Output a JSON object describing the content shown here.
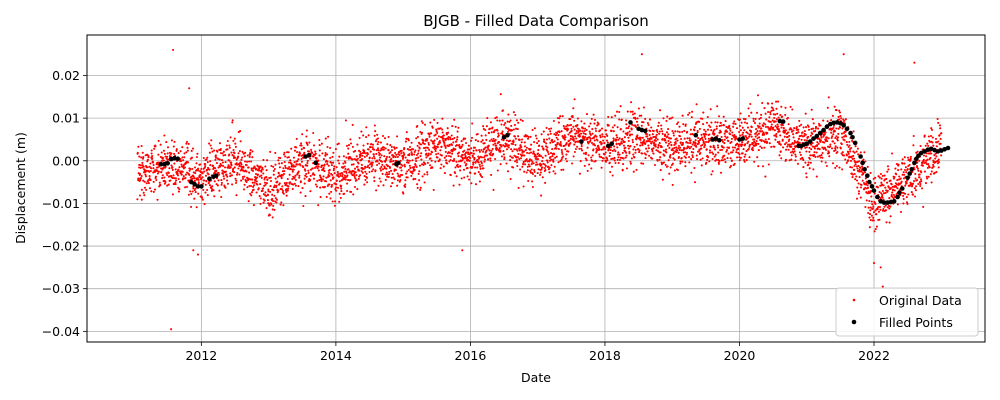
{
  "chart_data": {
    "type": "scatter",
    "title": "BJGB - Filled Data Comparison",
    "xlabel": "Date",
    "ylabel": "Displacement (m)",
    "xlim": [
      2010.3,
      2023.65
    ],
    "ylim": [
      -0.0425,
      0.0295
    ],
    "grid": true,
    "x_ticks": [
      2012,
      2014,
      2016,
      2018,
      2020,
      2022
    ],
    "x_tick_labels": [
      "2012",
      "2014",
      "2016",
      "2018",
      "2020",
      "2022"
    ],
    "y_ticks": [
      0.02,
      0.01,
      0.0,
      -0.01,
      -0.02,
      -0.03,
      -0.04
    ],
    "y_tick_labels": [
      "0.02",
      "0.01",
      "0.00",
      "−0.01",
      "−0.02",
      "−0.03",
      "−0.04"
    ],
    "legend": {
      "placement": "lower-right",
      "entries": [
        {
          "label": "Original Data",
          "color": "#ff0000",
          "marker": "small-dot"
        },
        {
          "label": "Filled Points",
          "color": "#000000",
          "marker": "dot"
        }
      ]
    },
    "series": [
      {
        "name": "Original Data",
        "color": "#ff0000",
        "x_range": [
          2011.05,
          2023.0
        ],
        "n_points": 4200,
        "seasonal_amplitude": 0.006,
        "noise_sd": 0.0032,
        "trend_knots": {
          "x": [
            2011.0,
            2011.5,
            2012.0,
            2012.5,
            2013.0,
            2013.5,
            2014.0,
            2014.5,
            2015.0,
            2015.5,
            2016.0,
            2016.5,
            2017.0,
            2017.5,
            2018.0,
            2018.5,
            2019.0,
            2019.5,
            2020.0,
            2020.5,
            2021.0,
            2021.5,
            2022.0,
            2022.5,
            2023.0
          ],
          "y": [
            -0.003,
            -0.001,
            -0.004,
            0.0,
            -0.007,
            0.0,
            -0.004,
            0.001,
            -0.001,
            0.004,
            0.0,
            0.005,
            0.0,
            0.006,
            0.003,
            0.006,
            0.002,
            0.005,
            0.004,
            0.008,
            0.004,
            0.006,
            -0.01,
            -0.004,
            0.003
          ]
        },
        "outliers": [
          {
            "x": 2011.58,
            "y": 0.026
          },
          {
            "x": 2011.55,
            "y": -0.0395
          },
          {
            "x": 2011.82,
            "y": 0.017
          },
          {
            "x": 2011.95,
            "y": -0.022
          },
          {
            "x": 2011.88,
            "y": -0.021
          },
          {
            "x": 2015.88,
            "y": -0.021
          },
          {
            "x": 2018.55,
            "y": 0.025
          },
          {
            "x": 2021.55,
            "y": 0.025
          },
          {
            "x": 2022.1,
            "y": -0.025
          },
          {
            "x": 2022.13,
            "y": -0.0295
          },
          {
            "x": 2022.6,
            "y": 0.023
          },
          {
            "x": 2022.0,
            "y": -0.024
          }
        ]
      },
      {
        "name": "Filled Points",
        "color": "#000000",
        "points": [
          [
            2011.4,
            -0.0008
          ],
          [
            2011.45,
            -0.0008
          ],
          [
            2011.5,
            -0.0006
          ],
          [
            2011.55,
            0.0004
          ],
          [
            2011.6,
            0.0006
          ],
          [
            2011.65,
            0.0005
          ],
          [
            2011.85,
            -0.005
          ],
          [
            2011.9,
            -0.0055
          ],
          [
            2011.95,
            -0.006
          ],
          [
            2012.0,
            -0.006
          ],
          [
            2012.12,
            -0.0042
          ],
          [
            2012.18,
            -0.0037
          ],
          [
            2012.22,
            -0.0035
          ],
          [
            2013.55,
            0.001
          ],
          [
            2013.6,
            0.0013
          ],
          [
            2013.7,
            -0.0005
          ],
          [
            2014.9,
            -0.0008
          ],
          [
            2014.93,
            -0.0005
          ],
          [
            2016.5,
            0.0055
          ],
          [
            2016.55,
            0.006
          ],
          [
            2017.65,
            0.0045
          ],
          [
            2018.05,
            0.0035
          ],
          [
            2018.1,
            0.004
          ],
          [
            2018.38,
            0.009
          ],
          [
            2018.5,
            0.0075
          ],
          [
            2018.55,
            0.0072
          ],
          [
            2018.6,
            0.007
          ],
          [
            2019.35,
            0.006
          ],
          [
            2019.6,
            0.005
          ],
          [
            2019.65,
            0.0052
          ],
          [
            2019.7,
            0.0048
          ],
          [
            2020.0,
            0.005
          ],
          [
            2020.05,
            0.0052
          ],
          [
            2020.6,
            0.0093
          ],
          [
            2020.65,
            0.0092
          ],
          [
            2020.88,
            0.0035
          ],
          [
            2020.92,
            0.0035
          ],
          [
            2020.96,
            0.0038
          ],
          [
            2021.0,
            0.004
          ],
          [
            2021.05,
            0.0045
          ],
          [
            2021.1,
            0.0052
          ],
          [
            2021.15,
            0.0058
          ],
          [
            2021.2,
            0.0065
          ],
          [
            2021.25,
            0.0072
          ],
          [
            2021.3,
            0.008
          ],
          [
            2021.35,
            0.0086
          ],
          [
            2021.4,
            0.0089
          ],
          [
            2021.45,
            0.009
          ],
          [
            2021.5,
            0.0088
          ],
          [
            2021.55,
            0.0083
          ],
          [
            2021.6,
            0.0075
          ],
          [
            2021.65,
            0.0065
          ],
          [
            2021.68,
            0.0055
          ],
          [
            2021.72,
            0.0042
          ],
          [
            2021.8,
            0.001
          ],
          [
            2021.83,
            -0.0005
          ],
          [
            2021.86,
            -0.002
          ],
          [
            2021.9,
            -0.0035
          ],
          [
            2021.93,
            -0.005
          ],
          [
            2021.97,
            -0.006
          ],
          [
            2022.0,
            -0.007
          ],
          [
            2022.05,
            -0.0085
          ],
          [
            2022.1,
            -0.0095
          ],
          [
            2022.15,
            -0.0098
          ],
          [
            2022.2,
            -0.0098
          ],
          [
            2022.25,
            -0.0097
          ],
          [
            2022.3,
            -0.0095
          ],
          [
            2022.35,
            -0.0085
          ],
          [
            2022.38,
            -0.0075
          ],
          [
            2022.42,
            -0.0065
          ],
          [
            2022.5,
            -0.004
          ],
          [
            2022.53,
            -0.003
          ],
          [
            2022.56,
            -0.002
          ],
          [
            2022.6,
            -0.0005
          ],
          [
            2022.63,
            0.0005
          ],
          [
            2022.66,
            0.0012
          ],
          [
            2022.7,
            0.0018
          ],
          [
            2022.75,
            0.0022
          ],
          [
            2022.8,
            0.0026
          ],
          [
            2022.85,
            0.0028
          ],
          [
            2022.9,
            0.0025
          ],
          [
            2022.95,
            0.0022
          ],
          [
            2023.0,
            0.0024
          ],
          [
            2023.05,
            0.0027
          ],
          [
            2023.1,
            0.003
          ]
        ]
      }
    ]
  }
}
